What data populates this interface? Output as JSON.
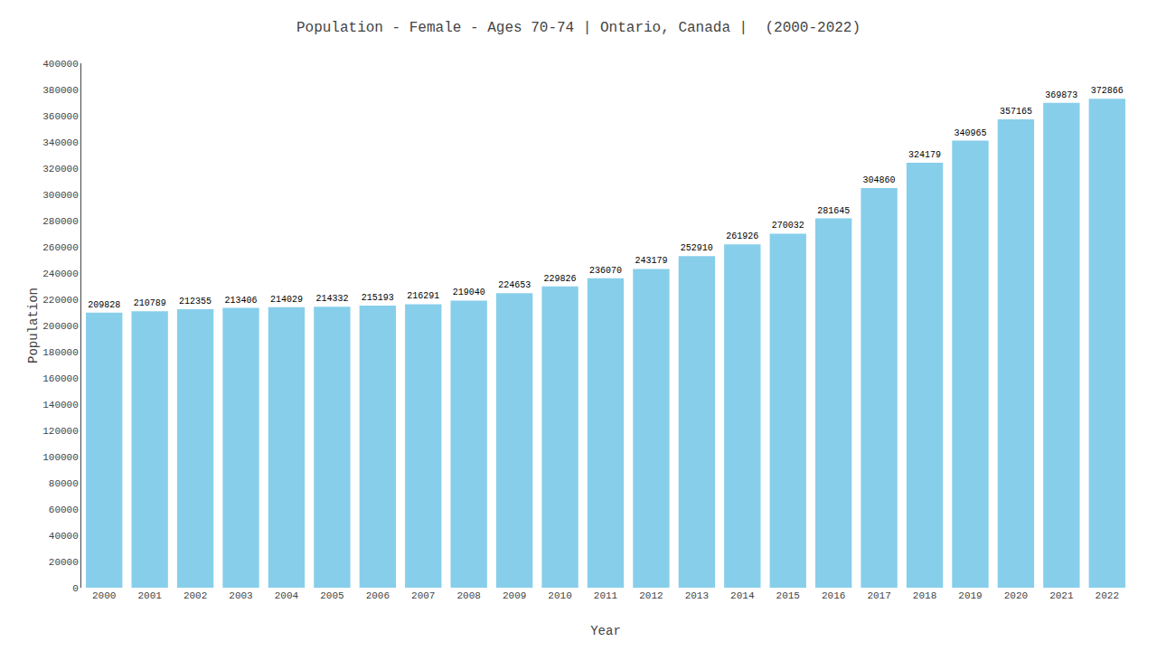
{
  "chart_data": {
    "type": "bar",
    "title": "Population - Female - Ages 70-74 | Ontario, Canada |  (2000-2022)",
    "x_label": "Year",
    "y_label": "Population",
    "categories": [
      "2000",
      "2001",
      "2002",
      "2003",
      "2004",
      "2005",
      "2006",
      "2007",
      "2008",
      "2009",
      "2010",
      "2011",
      "2012",
      "2013",
      "2014",
      "2015",
      "2016",
      "2017",
      "2018",
      "2019",
      "2020",
      "2021",
      "2022"
    ],
    "values": [
      209828,
      210789,
      212355,
      213406,
      214029,
      214332,
      215193,
      216291,
      219040,
      224653,
      229826,
      236070,
      243179,
      252910,
      261926,
      270032,
      281645,
      304860,
      324179,
      340965,
      357165,
      369873,
      372866
    ],
    "color": "#87CEEB",
    "ylim": [
      0,
      400000
    ],
    "yticks": [
      0,
      20000,
      40000,
      60000,
      80000,
      100000,
      120000,
      140000,
      160000,
      180000,
      200000,
      220000,
      240000,
      260000,
      280000,
      300000,
      320000,
      340000,
      360000,
      380000,
      400000
    ],
    "grid": false,
    "data_labels": true
  }
}
